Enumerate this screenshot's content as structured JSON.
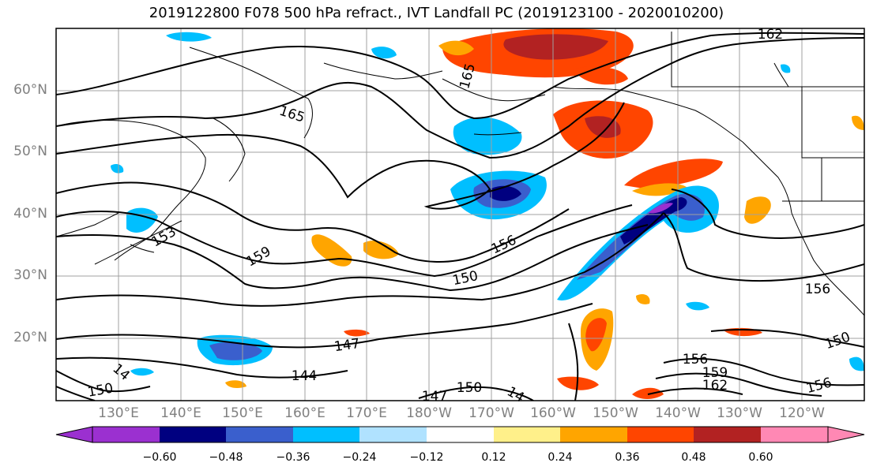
{
  "title": "2019122800 F078 500 hPa refract., IVT Landfall PC (2019123100 - 2020010200)",
  "lat_labels": [
    "60°N",
    "50°N",
    "40°N",
    "30°N",
    "20°N"
  ],
  "lon_labels": [
    "130°E",
    "140°E",
    "150°E",
    "160°E",
    "170°E",
    "180°W",
    "170°W",
    "160°W",
    "150°W",
    "140°W",
    "130°W",
    "120°W"
  ],
  "contour_labels": [
    "165",
    "162",
    "165",
    "159",
    "153",
    "156",
    "150",
    "147",
    "144",
    "150",
    "156",
    "156",
    "159",
    "162",
    "150",
    "156",
    "14",
    "150",
    "14",
    "147"
  ],
  "colorbar": {
    "colors": [
      "#9b30d0",
      "#000080",
      "#3a5fcd",
      "#00bfff",
      "#b0e2ff",
      "#ffffff",
      "#fff08a",
      "#ffa500",
      "#ff4500",
      "#b22222",
      "#ff88b4"
    ],
    "tick_labels": [
      "−0.60",
      "−0.48",
      "−0.36",
      "−0.24",
      "−0.12",
      "0.12",
      "0.24",
      "0.36",
      "0.48",
      "0.60"
    ]
  }
}
